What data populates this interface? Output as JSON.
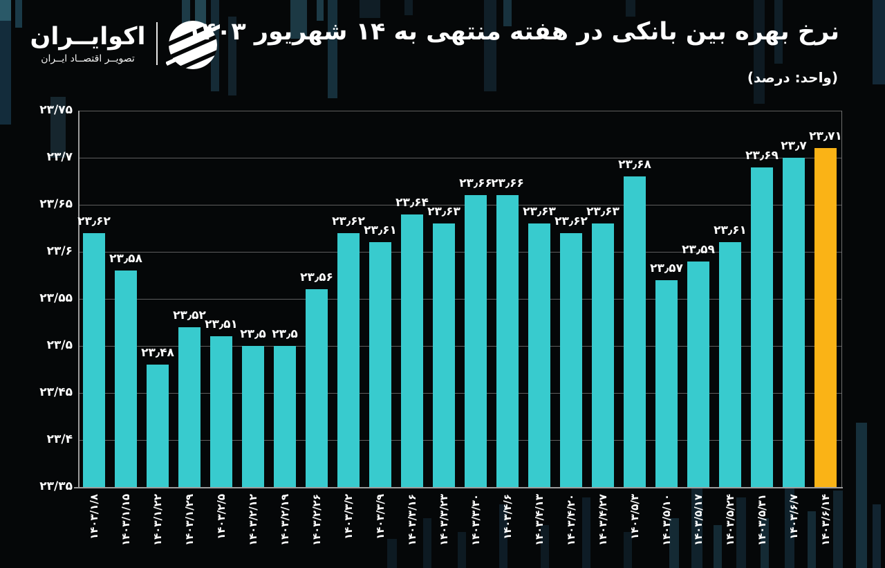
{
  "brand": {
    "name": "اکوایــران",
    "tagline": "تصویــر اقتصــاد ایــران"
  },
  "header": {
    "title": "نرخ بهره بین بانکی در هفته منتهی به ۱۴ شهریور ۱۴۰۳",
    "unit_note": "(واحد: درصد)"
  },
  "chart_data": {
    "type": "bar",
    "title": "نرخ بهره بین بانکی در هفته منتهی به ۱۴ شهریور ۱۴۰۳",
    "unit": "درصد",
    "categories": [
      "۱۴۰۳/۱/۸",
      "۱۴۰۳/۱/۱۵",
      "۱۴۰۳/۱/۲۲",
      "۱۴۰۳/۱/۲۹",
      "۱۴۰۳/۲/۵",
      "۱۴۰۳/۲/۱۲",
      "۱۴۰۳/۲/۱۹",
      "۱۴۰۳/۲/۲۶",
      "۱۴۰۳/۳/۲",
      "۱۴۰۳/۳/۹",
      "۱۴۰۳/۳/۱۶",
      "۱۴۰۳/۳/۲۳",
      "۱۴۰۳/۳/۳۰",
      "۱۴۰۳/۴/۶",
      "۱۴۰۳/۴/۱۳",
      "۱۴۰۳/۴/۲۰",
      "۱۴۰۳/۴/۲۷",
      "۱۴۰۳/۵/۳",
      "۱۴۰۳/۵/۱۰",
      "۱۴۰۳/۵/۱۷",
      "۱۴۰۳/۵/۲۴",
      "۱۴۰۳/۵/۳۱",
      "۱۴۰۳/۶/۷",
      "۱۴۰۳/۶/۱۴"
    ],
    "values": [
      23.62,
      23.58,
      23.48,
      23.52,
      23.51,
      23.5,
      23.5,
      23.56,
      23.62,
      23.61,
      23.64,
      23.63,
      23.66,
      23.66,
      23.63,
      23.62,
      23.63,
      23.68,
      23.57,
      23.59,
      23.61,
      23.69,
      23.7,
      23.71
    ],
    "value_labels": [
      "۲۳٫۶۲",
      "۲۳٫۵۸",
      "۲۳٫۴۸",
      "۲۳٫۵۲",
      "۲۳٫۵۱",
      "۲۳٫۵",
      "۲۳٫۵",
      "۲۳٫۵۶",
      "۲۳٫۶۲",
      "۲۳٫۶۱",
      "۲۳٫۶۴",
      "۲۳٫۶۳",
      "۲۳٫۶۶",
      "۲۳٫۶۶",
      "۲۳٫۶۳",
      "۲۳٫۶۲",
      "۲۳٫۶۳",
      "۲۳٫۶۸",
      "۲۳٫۵۷",
      "۲۳٫۵۹",
      "۲۳٫۶۱",
      "۲۳٫۶۹",
      "۲۳٫۷",
      "۲۳٫۷۱"
    ],
    "y_ticks": [
      "۲۳/۷۵",
      "۲۳/۷",
      "۲۳/۶۵",
      "۲۳/۶",
      "۲۳/۵۵",
      "۲۳/۵",
      "۲۳/۴۵",
      "۲۳/۴",
      "۲۳/۳۵"
    ],
    "ylim": [
      23.35,
      23.75
    ],
    "grid": true,
    "legend": "none",
    "bar_color": "#38CBCE",
    "highlight_color": "#FAB316",
    "highlight_index": 23
  }
}
